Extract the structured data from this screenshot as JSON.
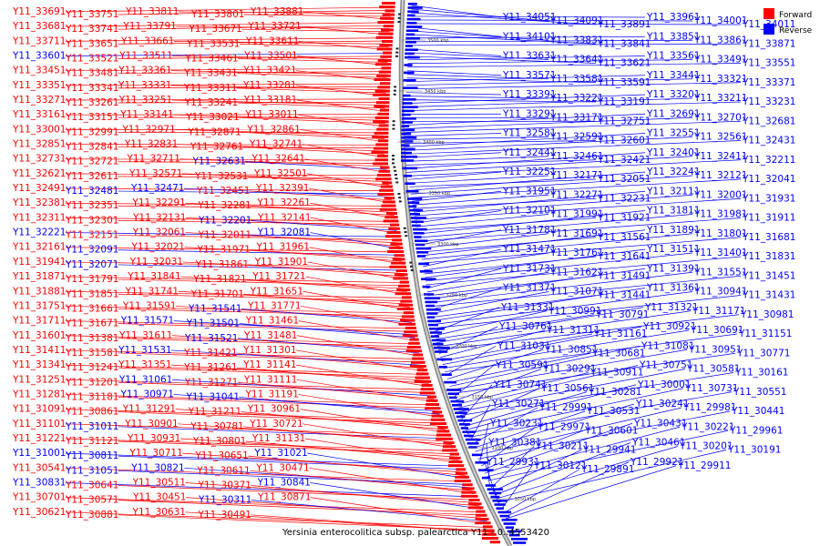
{
  "legend": {
    "forward_label": "Forward",
    "reverse_label": "Reverse",
    "forward_color": "#ff0000",
    "reverse_color": "#0000ff"
  },
  "caption": "Yersinia enterocolitica subsp. palearctica Y11 - 0..4553420",
  "axis_ticks": [
    "3500 kbp",
    "3450 kbp",
    "3400 kbp",
    "3350 kbp",
    "3300 kbp",
    "3250 kbp",
    "3200 kbp",
    "3150 kbp",
    "3100 kbp",
    "3050 kbp"
  ],
  "left_labels": [
    {
      "t": "Y11_33691",
      "s": "f"
    },
    {
      "t": "Y11_33751",
      "s": "f"
    },
    {
      "t": "Y11_33811",
      "s": "f"
    },
    {
      "t": "Y11_33801",
      "s": "f"
    },
    {
      "t": "Y11_33881",
      "s": "f"
    },
    {
      "t": "Y11_33681",
      "s": "f"
    },
    {
      "t": "Y11_33741",
      "s": "f"
    },
    {
      "t": "Y11_33791",
      "s": "f"
    },
    {
      "t": "Y11_33671",
      "s": "f"
    },
    {
      "t": "Y11_33721",
      "s": "f"
    },
    {
      "t": "Y11_33711",
      "s": "f"
    },
    {
      "t": "Y11_33651",
      "s": "f"
    },
    {
      "t": "Y11_33661",
      "s": "f"
    },
    {
      "t": "Y11_33531",
      "s": "f"
    },
    {
      "t": "Y11_33611",
      "s": "f"
    },
    {
      "t": "Y11_33601",
      "s": "r"
    },
    {
      "t": "Y11_33521",
      "s": "f"
    },
    {
      "t": "Y11_33511",
      "s": "f"
    },
    {
      "t": "Y11_33461",
      "s": "f"
    },
    {
      "t": "Y11_33501",
      "s": "f"
    },
    {
      "t": "Y11_33451",
      "s": "f"
    },
    {
      "t": "Y11_33481",
      "s": "f"
    },
    {
      "t": "Y11_33361",
      "s": "f"
    },
    {
      "t": "Y11_33431",
      "s": "f"
    },
    {
      "t": "Y11_33421",
      "s": "f"
    },
    {
      "t": "Y11_33351",
      "s": "f"
    },
    {
      "t": "Y11_33341",
      "s": "f"
    },
    {
      "t": "Y11_33331",
      "s": "f"
    },
    {
      "t": "Y11_33311",
      "s": "f"
    },
    {
      "t": "Y11_33281",
      "s": "f"
    },
    {
      "t": "Y11_33271",
      "s": "f"
    },
    {
      "t": "Y11_33261",
      "s": "f"
    },
    {
      "t": "Y11_33251",
      "s": "f"
    },
    {
      "t": "Y11_33241",
      "s": "f"
    },
    {
      "t": "Y11_33181",
      "s": "f"
    },
    {
      "t": "Y11_33161",
      "s": "f"
    },
    {
      "t": "Y11_33151",
      "s": "f"
    },
    {
      "t": "Y11_33141",
      "s": "f"
    },
    {
      "t": "Y11_33021",
      "s": "f"
    },
    {
      "t": "Y11_33011",
      "s": "f"
    },
    {
      "t": "Y11_33001",
      "s": "f"
    },
    {
      "t": "Y11_32991",
      "s": "f"
    },
    {
      "t": "Y11_32971",
      "s": "f"
    },
    {
      "t": "Y11_32871",
      "s": "f"
    },
    {
      "t": "Y11_32861",
      "s": "f"
    },
    {
      "t": "Y11_32851",
      "s": "f"
    },
    {
      "t": "Y11_32841",
      "s": "f"
    },
    {
      "t": "Y11_32831",
      "s": "f"
    },
    {
      "t": "Y11_32761",
      "s": "f"
    },
    {
      "t": "Y11_32741",
      "s": "f"
    },
    {
      "t": "Y11_32731",
      "s": "f"
    },
    {
      "t": "Y11_32721",
      "s": "f"
    },
    {
      "t": "Y11_32711",
      "s": "f"
    },
    {
      "t": "Y11_32631",
      "s": "r"
    },
    {
      "t": "Y11_32641",
      "s": "f"
    },
    {
      "t": "Y11_32621",
      "s": "f"
    },
    {
      "t": "Y11_32611",
      "s": "f"
    },
    {
      "t": "Y11_32571",
      "s": "f"
    },
    {
      "t": "Y11_32531",
      "s": "f"
    },
    {
      "t": "Y11_32501",
      "s": "f"
    },
    {
      "t": "Y11_32491",
      "s": "f"
    },
    {
      "t": "Y11_32481",
      "s": "r"
    },
    {
      "t": "Y11_32471",
      "s": "r"
    },
    {
      "t": "Y11_32451",
      "s": "f"
    },
    {
      "t": "Y11_32391",
      "s": "f"
    },
    {
      "t": "Y11_32381",
      "s": "f"
    },
    {
      "t": "Y11_32351",
      "s": "f"
    },
    {
      "t": "Y11_32291",
      "s": "f"
    },
    {
      "t": "Y11_32281",
      "s": "f"
    },
    {
      "t": "Y11_32261",
      "s": "f"
    },
    {
      "t": "Y11_32311",
      "s": "f"
    },
    {
      "t": "Y11_32301",
      "s": "f"
    },
    {
      "t": "Y11_32131",
      "s": "f"
    },
    {
      "t": "Y11_32201",
      "s": "r"
    },
    {
      "t": "Y11_32141",
      "s": "f"
    },
    {
      "t": "Y11_32221",
      "s": "r"
    },
    {
      "t": "Y11_32151",
      "s": "f"
    },
    {
      "t": "Y11_32061",
      "s": "f"
    },
    {
      "t": "Y11_32011",
      "s": "f"
    },
    {
      "t": "Y11_32081",
      "s": "r"
    },
    {
      "t": "Y11_32161",
      "s": "f"
    },
    {
      "t": "Y11_32091",
      "s": "r"
    },
    {
      "t": "Y11_32021",
      "s": "f"
    },
    {
      "t": "Y11_31971",
      "s": "f"
    },
    {
      "t": "Y11_31961",
      "s": "f"
    },
    {
      "t": "Y11_31941",
      "s": "f"
    },
    {
      "t": "Y11_32071",
      "s": "r"
    },
    {
      "t": "Y11_32031",
      "s": "f"
    },
    {
      "t": "Y11_31861",
      "s": "f"
    },
    {
      "t": "Y11_31901",
      "s": "f"
    },
    {
      "t": "Y11_31871",
      "s": "f"
    },
    {
      "t": "Y11_31791",
      "s": "f"
    },
    {
      "t": "Y11_31841",
      "s": "f"
    },
    {
      "t": "Y11_31821",
      "s": "f"
    },
    {
      "t": "Y11_31721",
      "s": "f"
    },
    {
      "t": "Y11_31881",
      "s": "f"
    },
    {
      "t": "Y11_31851",
      "s": "f"
    },
    {
      "t": "Y11_31741",
      "s": "f"
    },
    {
      "t": "Y11_31701",
      "s": "f"
    },
    {
      "t": "Y11_31651",
      "s": "f"
    },
    {
      "t": "Y11_31751",
      "s": "f"
    },
    {
      "t": "Y11_31661",
      "s": "f"
    },
    {
      "t": "Y11_31591",
      "s": "f"
    },
    {
      "t": "Y11_31541",
      "s": "r"
    },
    {
      "t": "Y11_31771",
      "s": "f"
    },
    {
      "t": "Y11_31711",
      "s": "f"
    },
    {
      "t": "Y11_31671",
      "s": "f"
    },
    {
      "t": "Y11_31571",
      "s": "r"
    },
    {
      "t": "Y11_31501",
      "s": "r"
    },
    {
      "t": "Y11_31461",
      "s": "f"
    },
    {
      "t": "Y11_31601",
      "s": "f"
    },
    {
      "t": "Y11_31381",
      "s": "f"
    },
    {
      "t": "Y11_31611",
      "s": "f"
    },
    {
      "t": "Y11_31521",
      "s": "r"
    },
    {
      "t": "Y11_31481",
      "s": "f"
    },
    {
      "t": "Y11_31411",
      "s": "f"
    },
    {
      "t": "Y11_31581",
      "s": "f"
    },
    {
      "t": "Y11_31531",
      "s": "r"
    },
    {
      "t": "Y11_31421",
      "s": "f"
    },
    {
      "t": "Y11_31301",
      "s": "f"
    },
    {
      "t": "Y11_31341",
      "s": "f"
    },
    {
      "t": "Y11_31241",
      "s": "f"
    },
    {
      "t": "Y11_31351",
      "s": "f"
    },
    {
      "t": "Y11_31261",
      "s": "f"
    },
    {
      "t": "Y11_31141",
      "s": "f"
    },
    {
      "t": "Y11_31251",
      "s": "f"
    },
    {
      "t": "Y11_31201",
      "s": "f"
    },
    {
      "t": "Y11_31061",
      "s": "r"
    },
    {
      "t": "Y11_31271",
      "s": "f"
    },
    {
      "t": "Y11_31111",
      "s": "f"
    },
    {
      "t": "Y11_31281",
      "s": "f"
    },
    {
      "t": "Y11_31181",
      "s": "f"
    },
    {
      "t": "Y11_30971",
      "s": "r"
    },
    {
      "t": "Y11_31041",
      "s": "r"
    },
    {
      "t": "Y11_31191",
      "s": "f"
    },
    {
      "t": "Y11_31091",
      "s": "f"
    },
    {
      "t": "Y11_30861",
      "s": "f"
    },
    {
      "t": "Y11_31291",
      "s": "f"
    },
    {
      "t": "Y11_31211",
      "s": "f"
    },
    {
      "t": "Y11_30961",
      "s": "f"
    },
    {
      "t": "Y11_31101",
      "s": "f"
    },
    {
      "t": "Y11_31011",
      "s": "r"
    },
    {
      "t": "Y11_30901",
      "s": "f"
    },
    {
      "t": "Y11_30781",
      "s": "f"
    },
    {
      "t": "Y11_30721",
      "s": "f"
    },
    {
      "t": "Y11_31221",
      "s": "f"
    },
    {
      "t": "Y11_31121",
      "s": "f"
    },
    {
      "t": "Y11_30931",
      "s": "f"
    },
    {
      "t": "Y11_30801",
      "s": "f"
    },
    {
      "t": "Y11_31131",
      "s": "f"
    },
    {
      "t": "Y11_31001",
      "s": "r"
    },
    {
      "t": "Y11_30811",
      "s": "r"
    },
    {
      "t": "Y11_30711",
      "s": "f"
    },
    {
      "t": "Y11_30651",
      "s": "f"
    },
    {
      "t": "Y11_31021",
      "s": "r"
    },
    {
      "t": "Y11_30541",
      "s": "f"
    },
    {
      "t": "Y11_31051",
      "s": "r"
    },
    {
      "t": "Y11_30821",
      "s": "r"
    },
    {
      "t": "Y11_30611",
      "s": "f"
    },
    {
      "t": "Y11_30471",
      "s": "f"
    },
    {
      "t": "Y11_30831",
      "s": "r"
    },
    {
      "t": "Y11_30641",
      "s": "f"
    },
    {
      "t": "Y11_30511",
      "s": "f"
    },
    {
      "t": "Y11_30371",
      "s": "f"
    },
    {
      "t": "Y11_30841",
      "s": "r"
    },
    {
      "t": "Y11_30701",
      "s": "f"
    },
    {
      "t": "Y11_30571",
      "s": "f"
    },
    {
      "t": "Y11_30451",
      "s": "f"
    },
    {
      "t": "Y11_30311",
      "s": "r"
    },
    {
      "t": "Y11_30871",
      "s": "f"
    },
    {
      "t": "Y11_30621",
      "s": "f"
    },
    {
      "t": "Y11_30881",
      "s": "f"
    },
    {
      "t": "Y11_30631",
      "s": "f"
    },
    {
      "t": "Y11_30491",
      "s": "f"
    }
  ],
  "right_labels": [
    "Y11_34051",
    "Y11_34091",
    "Y11_33891",
    "Y11_33961",
    "Y11_34001",
    "Y11_34011",
    "Y11_34101",
    "Y11_33831",
    "Y11_33841",
    "Y11_33851",
    "Y11_33861",
    "Y11_33871",
    "Y11_33631",
    "Y11_33641",
    "Y11_33621",
    "Y11_33561",
    "Y11_33491",
    "Y11_33551",
    "Y11_33571",
    "Y11_33581",
    "Y11_33591",
    "Y11_33441",
    "Y11_33321",
    "Y11_33371",
    "Y11_33391",
    "Y11_33221",
    "Y11_33191",
    "Y11_33201",
    "Y11_33211",
    "Y11_33231",
    "Y11_33291",
    "Y11_33171",
    "Y11_32751",
    "Y11_32691",
    "Y11_32701",
    "Y11_32681",
    "Y11_32581",
    "Y11_32591",
    "Y11_32601",
    "Y11_32551",
    "Y11_32561",
    "Y11_32431",
    "Y11_32441",
    "Y11_32461",
    "Y11_32421",
    "Y11_32401",
    "Y11_32411",
    "Y11_32211",
    "Y11_32251",
    "Y11_32171",
    "Y11_32051",
    "Y11_32241",
    "Y11_32121",
    "Y11_32041",
    "Y11_31951",
    "Y11_32271",
    "Y11_32231",
    "Y11_32111",
    "Y11_32001",
    "Y11_31931",
    "Y11_32101",
    "Y11_31991",
    "Y11_31921",
    "Y11_31811",
    "Y11_31981",
    "Y11_31911",
    "Y11_31781",
    "Y11_31691",
    "Y11_31561",
    "Y11_31891",
    "Y11_31801",
    "Y11_31681",
    "Y11_31471",
    "Y11_31761",
    "Y11_31641",
    "Y11_31511",
    "Y11_31401",
    "Y11_31831",
    "Y11_31731",
    "Y11_31621",
    "Y11_31491",
    "Y11_31391",
    "Y11_31551",
    "Y11_31451",
    "Y11_31371",
    "Y11_31071",
    "Y11_31441",
    "Y11_31361",
    "Y11_30941",
    "Y11_31431",
    "Y11_31331",
    "Y11_30991",
    "Y11_30791",
    "Y11_31321",
    "Y11_31171",
    "Y11_30981",
    "Y11_30761",
    "Y11_31311",
    "Y11_31161",
    "Y11_30921",
    "Y11_30691",
    "Y11_31151",
    "Y11_31031",
    "Y11_30851",
    "Y11_30681",
    "Y11_31081",
    "Y11_30951",
    "Y11_30771",
    "Y11_30591",
    "Y11_30291",
    "Y11_30911",
    "Y11_30751",
    "Y11_30581",
    "Y11_30161",
    "Y11_30741",
    "Y11_30561",
    "Y11_30281",
    "Y11_30001",
    "Y11_30731",
    "Y11_30551",
    "Y11_30271",
    "Y11_29991",
    "Y11_30531",
    "Y11_30241",
    "Y11_29981",
    "Y11_30441",
    "Y11_30231",
    "Y11_29971",
    "Y11_30601",
    "Y11_30431",
    "Y11_30221",
    "Y11_29961",
    "Y11_30381",
    "Y11_30211",
    "Y11_29941",
    "Y11_30461",
    "Y11_30201",
    "Y11_30191",
    "Y11_29931",
    "Y11_30121",
    "Y11_29891",
    "Y11_29921",
    "Y11_29911"
  ]
}
